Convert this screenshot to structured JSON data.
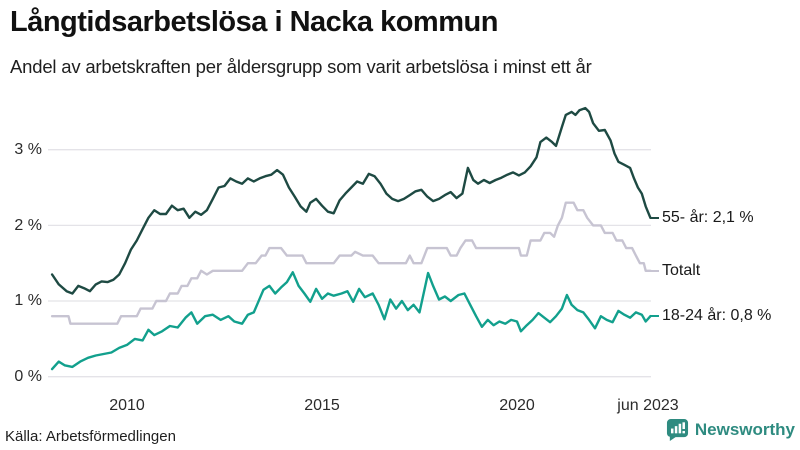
{
  "header": {
    "title": "Långtidsarbetslösa i Nacka kommun",
    "subtitle": "Andel av arbetskraften per åldersgrupp som varit arbetslösa i minst ett år"
  },
  "footer": {
    "source": "Källa: Arbetsförmedlingen",
    "brand": "Newsworthy",
    "brand_color": "#2e8b80"
  },
  "chart_data": {
    "type": "line",
    "title": "Långtidsarbetslösa i Nacka kommun",
    "unit": "%",
    "xlim": [
      2008.0,
      2023.55
    ],
    "ylim": [
      0,
      3.6
    ],
    "grid": "horizontal",
    "legend_position": "right-end-labels",
    "y_ticks": [
      {
        "value": 3,
        "label": "3 %"
      },
      {
        "value": 2,
        "label": "2 %"
      },
      {
        "value": 1,
        "label": "1 %"
      },
      {
        "value": 0,
        "label": "0 %"
      }
    ],
    "x_ticks": [
      {
        "value": 2010,
        "label": "2010"
      },
      {
        "value": 2015,
        "label": "2015"
      },
      {
        "value": 2020,
        "label": "2020"
      },
      {
        "value": 2023.42,
        "label": "jun 2023"
      }
    ],
    "series": [
      {
        "id": "55plus",
        "name": "55- år",
        "end_label": "55- år: 2,1 %",
        "color": "#1e4a43",
        "last_value": 2.1,
        "points": [
          [
            2008.08,
            1.35
          ],
          [
            2008.25,
            1.22
          ],
          [
            2008.45,
            1.13
          ],
          [
            2008.6,
            1.1
          ],
          [
            2008.75,
            1.2
          ],
          [
            2008.9,
            1.17
          ],
          [
            2009.05,
            1.13
          ],
          [
            2009.2,
            1.22
          ],
          [
            2009.35,
            1.26
          ],
          [
            2009.5,
            1.25
          ],
          [
            2009.65,
            1.28
          ],
          [
            2009.8,
            1.35
          ],
          [
            2009.95,
            1.5
          ],
          [
            2010.1,
            1.68
          ],
          [
            2010.25,
            1.8
          ],
          [
            2010.4,
            1.95
          ],
          [
            2010.55,
            2.1
          ],
          [
            2010.7,
            2.2
          ],
          [
            2010.85,
            2.15
          ],
          [
            2011.0,
            2.15
          ],
          [
            2011.15,
            2.26
          ],
          [
            2011.3,
            2.2
          ],
          [
            2011.45,
            2.22
          ],
          [
            2011.6,
            2.1
          ],
          [
            2011.75,
            2.18
          ],
          [
            2011.9,
            2.14
          ],
          [
            2012.05,
            2.2
          ],
          [
            2012.2,
            2.35
          ],
          [
            2012.35,
            2.5
          ],
          [
            2012.5,
            2.52
          ],
          [
            2012.65,
            2.62
          ],
          [
            2012.8,
            2.58
          ],
          [
            2012.95,
            2.55
          ],
          [
            2013.1,
            2.62
          ],
          [
            2013.25,
            2.58
          ],
          [
            2013.4,
            2.62
          ],
          [
            2013.55,
            2.65
          ],
          [
            2013.7,
            2.67
          ],
          [
            2013.85,
            2.73
          ],
          [
            2014.0,
            2.67
          ],
          [
            2014.15,
            2.5
          ],
          [
            2014.3,
            2.38
          ],
          [
            2014.45,
            2.25
          ],
          [
            2014.6,
            2.18
          ],
          [
            2014.7,
            2.3
          ],
          [
            2014.85,
            2.35
          ],
          [
            2015.0,
            2.26
          ],
          [
            2015.15,
            2.18
          ],
          [
            2015.3,
            2.16
          ],
          [
            2015.45,
            2.33
          ],
          [
            2015.6,
            2.42
          ],
          [
            2015.75,
            2.5
          ],
          [
            2015.9,
            2.58
          ],
          [
            2016.05,
            2.55
          ],
          [
            2016.2,
            2.68
          ],
          [
            2016.35,
            2.65
          ],
          [
            2016.5,
            2.55
          ],
          [
            2016.65,
            2.42
          ],
          [
            2016.8,
            2.35
          ],
          [
            2016.95,
            2.32
          ],
          [
            2017.1,
            2.35
          ],
          [
            2017.25,
            2.4
          ],
          [
            2017.4,
            2.45
          ],
          [
            2017.55,
            2.47
          ],
          [
            2017.7,
            2.38
          ],
          [
            2017.85,
            2.32
          ],
          [
            2018.0,
            2.35
          ],
          [
            2018.15,
            2.4
          ],
          [
            2018.3,
            2.44
          ],
          [
            2018.45,
            2.36
          ],
          [
            2018.6,
            2.42
          ],
          [
            2018.74,
            2.76
          ],
          [
            2018.88,
            2.6
          ],
          [
            2019.0,
            2.55
          ],
          [
            2019.15,
            2.6
          ],
          [
            2019.3,
            2.56
          ],
          [
            2019.45,
            2.6
          ],
          [
            2019.6,
            2.63
          ],
          [
            2019.75,
            2.67
          ],
          [
            2019.9,
            2.7
          ],
          [
            2020.05,
            2.66
          ],
          [
            2020.2,
            2.7
          ],
          [
            2020.35,
            2.78
          ],
          [
            2020.5,
            2.9
          ],
          [
            2020.6,
            3.1
          ],
          [
            2020.75,
            3.16
          ],
          [
            2020.9,
            3.1
          ],
          [
            2021.0,
            3.05
          ],
          [
            2021.15,
            3.3
          ],
          [
            2021.25,
            3.46
          ],
          [
            2021.4,
            3.5
          ],
          [
            2021.5,
            3.46
          ],
          [
            2021.6,
            3.52
          ],
          [
            2021.75,
            3.55
          ],
          [
            2021.85,
            3.5
          ],
          [
            2021.95,
            3.35
          ],
          [
            2022.1,
            3.25
          ],
          [
            2022.25,
            3.26
          ],
          [
            2022.4,
            3.12
          ],
          [
            2022.5,
            2.95
          ],
          [
            2022.6,
            2.84
          ],
          [
            2022.75,
            2.8
          ],
          [
            2022.9,
            2.76
          ],
          [
            2023.0,
            2.62
          ],
          [
            2023.1,
            2.5
          ],
          [
            2023.2,
            2.42
          ],
          [
            2023.3,
            2.25
          ],
          [
            2023.42,
            2.1
          ]
        ]
      },
      {
        "id": "totalt",
        "name": "Totalt",
        "end_label": "Totalt",
        "color": "#c7c4d2",
        "last_value": 1.4,
        "points": [
          [
            2008.08,
            0.8
          ],
          [
            2008.5,
            0.8
          ],
          [
            2008.55,
            0.7
          ],
          [
            2009.75,
            0.7
          ],
          [
            2009.85,
            0.8
          ],
          [
            2010.25,
            0.8
          ],
          [
            2010.35,
            0.9
          ],
          [
            2010.65,
            0.9
          ],
          [
            2010.75,
            1.0
          ],
          [
            2011.0,
            1.0
          ],
          [
            2011.1,
            1.1
          ],
          [
            2011.3,
            1.1
          ],
          [
            2011.4,
            1.2
          ],
          [
            2011.55,
            1.2
          ],
          [
            2011.65,
            1.3
          ],
          [
            2011.8,
            1.3
          ],
          [
            2011.9,
            1.4
          ],
          [
            2012.05,
            1.35
          ],
          [
            2012.2,
            1.4
          ],
          [
            2012.95,
            1.4
          ],
          [
            2013.1,
            1.5
          ],
          [
            2013.3,
            1.5
          ],
          [
            2013.45,
            1.6
          ],
          [
            2013.55,
            1.6
          ],
          [
            2013.65,
            1.7
          ],
          [
            2013.95,
            1.7
          ],
          [
            2014.1,
            1.6
          ],
          [
            2014.5,
            1.6
          ],
          [
            2014.6,
            1.5
          ],
          [
            2015.3,
            1.5
          ],
          [
            2015.45,
            1.6
          ],
          [
            2015.75,
            1.6
          ],
          [
            2015.85,
            1.65
          ],
          [
            2016.05,
            1.6
          ],
          [
            2016.3,
            1.6
          ],
          [
            2016.45,
            1.5
          ],
          [
            2017.15,
            1.5
          ],
          [
            2017.25,
            1.6
          ],
          [
            2017.35,
            1.5
          ],
          [
            2017.55,
            1.5
          ],
          [
            2017.7,
            1.7
          ],
          [
            2018.2,
            1.7
          ],
          [
            2018.3,
            1.6
          ],
          [
            2018.45,
            1.6
          ],
          [
            2018.55,
            1.7
          ],
          [
            2018.68,
            1.8
          ],
          [
            2018.85,
            1.8
          ],
          [
            2018.95,
            1.7
          ],
          [
            2020.05,
            1.7
          ],
          [
            2020.1,
            1.6
          ],
          [
            2020.25,
            1.6
          ],
          [
            2020.35,
            1.8
          ],
          [
            2020.6,
            1.8
          ],
          [
            2020.7,
            1.9
          ],
          [
            2020.85,
            1.9
          ],
          [
            2020.95,
            1.85
          ],
          [
            2021.05,
            2.0
          ],
          [
            2021.15,
            2.1
          ],
          [
            2021.25,
            2.3
          ],
          [
            2021.45,
            2.3
          ],
          [
            2021.55,
            2.2
          ],
          [
            2021.7,
            2.2
          ],
          [
            2021.8,
            2.1
          ],
          [
            2021.95,
            2.0
          ],
          [
            2022.15,
            2.0
          ],
          [
            2022.25,
            1.9
          ],
          [
            2022.45,
            1.9
          ],
          [
            2022.55,
            1.8
          ],
          [
            2022.7,
            1.8
          ],
          [
            2022.8,
            1.7
          ],
          [
            2022.95,
            1.7
          ],
          [
            2023.05,
            1.6
          ],
          [
            2023.15,
            1.5
          ],
          [
            2023.25,
            1.5
          ],
          [
            2023.3,
            1.4
          ],
          [
            2023.42,
            1.4
          ]
        ]
      },
      {
        "id": "18-24",
        "name": "18-24 år",
        "end_label": "18-24 år: 0,8 %",
        "color": "#12a08d",
        "last_value": 0.8,
        "points": [
          [
            2008.08,
            0.1
          ],
          [
            2008.25,
            0.2
          ],
          [
            2008.4,
            0.15
          ],
          [
            2008.6,
            0.13
          ],
          [
            2008.8,
            0.2
          ],
          [
            2009.0,
            0.25
          ],
          [
            2009.2,
            0.28
          ],
          [
            2009.4,
            0.3
          ],
          [
            2009.6,
            0.32
          ],
          [
            2009.8,
            0.38
          ],
          [
            2010.0,
            0.42
          ],
          [
            2010.2,
            0.5
          ],
          [
            2010.4,
            0.48
          ],
          [
            2010.55,
            0.62
          ],
          [
            2010.7,
            0.55
          ],
          [
            2010.9,
            0.6
          ],
          [
            2011.1,
            0.67
          ],
          [
            2011.3,
            0.65
          ],
          [
            2011.5,
            0.78
          ],
          [
            2011.65,
            0.85
          ],
          [
            2011.8,
            0.7
          ],
          [
            2012.0,
            0.8
          ],
          [
            2012.2,
            0.82
          ],
          [
            2012.4,
            0.75
          ],
          [
            2012.6,
            0.8
          ],
          [
            2012.75,
            0.73
          ],
          [
            2012.95,
            0.7
          ],
          [
            2013.1,
            0.82
          ],
          [
            2013.25,
            0.85
          ],
          [
            2013.5,
            1.15
          ],
          [
            2013.65,
            1.2
          ],
          [
            2013.8,
            1.1
          ],
          [
            2013.95,
            1.18
          ],
          [
            2014.1,
            1.25
          ],
          [
            2014.25,
            1.38
          ],
          [
            2014.4,
            1.2
          ],
          [
            2014.55,
            1.1
          ],
          [
            2014.7,
            0.99
          ],
          [
            2014.85,
            1.16
          ],
          [
            2015.0,
            1.03
          ],
          [
            2015.15,
            1.1
          ],
          [
            2015.3,
            1.07
          ],
          [
            2015.5,
            1.1
          ],
          [
            2015.65,
            1.13
          ],
          [
            2015.8,
            0.99
          ],
          [
            2015.95,
            1.16
          ],
          [
            2016.1,
            1.05
          ],
          [
            2016.3,
            1.1
          ],
          [
            2016.45,
            0.95
          ],
          [
            2016.6,
            0.76
          ],
          [
            2016.75,
            1.02
          ],
          [
            2016.9,
            0.9
          ],
          [
            2017.05,
            1.0
          ],
          [
            2017.2,
            0.88
          ],
          [
            2017.35,
            0.95
          ],
          [
            2017.5,
            0.85
          ],
          [
            2017.72,
            1.37
          ],
          [
            2017.85,
            1.2
          ],
          [
            2018.0,
            1.02
          ],
          [
            2018.15,
            1.06
          ],
          [
            2018.3,
            1.0
          ],
          [
            2018.5,
            1.08
          ],
          [
            2018.65,
            1.1
          ],
          [
            2018.8,
            0.95
          ],
          [
            2018.95,
            0.8
          ],
          [
            2019.1,
            0.66
          ],
          [
            2019.25,
            0.75
          ],
          [
            2019.4,
            0.68
          ],
          [
            2019.55,
            0.73
          ],
          [
            2019.7,
            0.7
          ],
          [
            2019.85,
            0.75
          ],
          [
            2020.0,
            0.73
          ],
          [
            2020.1,
            0.6
          ],
          [
            2020.25,
            0.68
          ],
          [
            2020.4,
            0.75
          ],
          [
            2020.55,
            0.84
          ],
          [
            2020.7,
            0.78
          ],
          [
            2020.85,
            0.72
          ],
          [
            2021.0,
            0.8
          ],
          [
            2021.15,
            0.9
          ],
          [
            2021.28,
            1.08
          ],
          [
            2021.4,
            0.95
          ],
          [
            2021.55,
            0.88
          ],
          [
            2021.7,
            0.85
          ],
          [
            2021.85,
            0.75
          ],
          [
            2022.0,
            0.64
          ],
          [
            2022.15,
            0.8
          ],
          [
            2022.3,
            0.75
          ],
          [
            2022.45,
            0.72
          ],
          [
            2022.6,
            0.87
          ],
          [
            2022.75,
            0.82
          ],
          [
            2022.9,
            0.78
          ],
          [
            2023.05,
            0.85
          ],
          [
            2023.2,
            0.82
          ],
          [
            2023.3,
            0.73
          ],
          [
            2023.42,
            0.8
          ]
        ]
      }
    ]
  }
}
